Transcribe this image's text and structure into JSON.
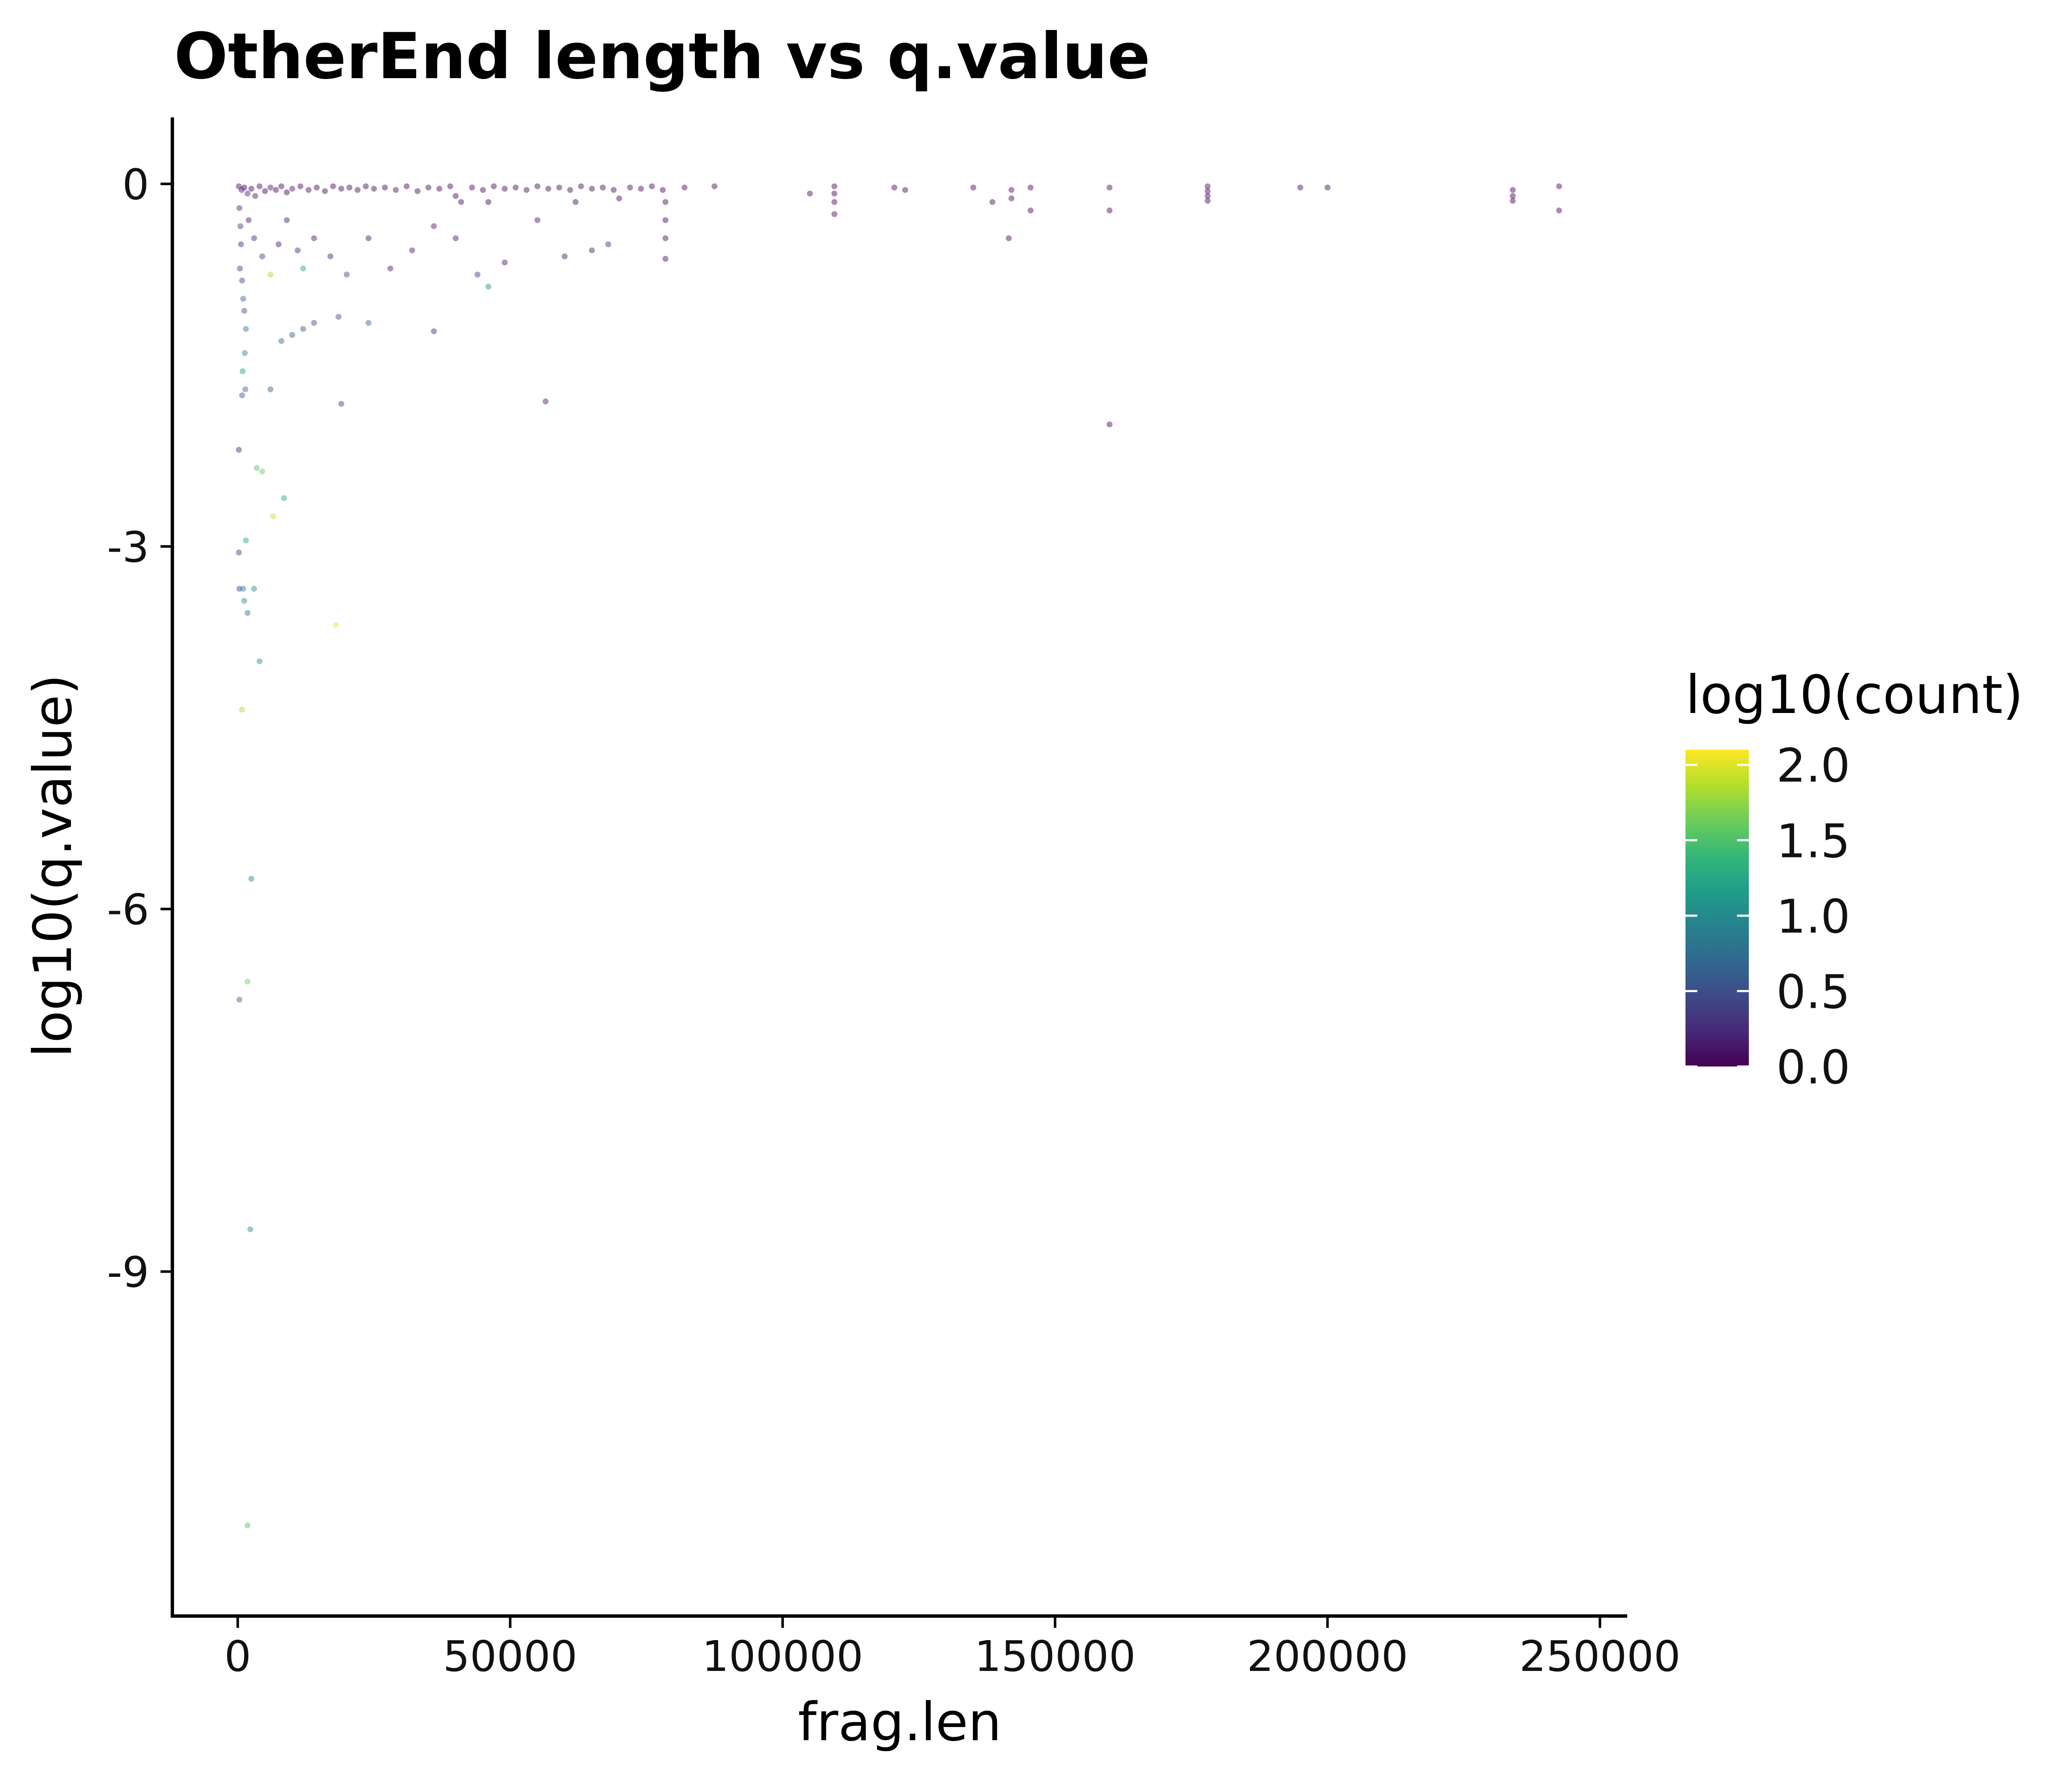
{
  "chart_data": {
    "type": "scatter",
    "title": "OtherEnd length vs q.value",
    "xlabel": "frag.len",
    "ylabel": "log10(q.value)",
    "xlim": [
      -12000,
      255000
    ],
    "ylim": [
      -11.85,
      0.55
    ],
    "xticks": [
      0,
      50000,
      100000,
      150000,
      200000,
      250000
    ],
    "xtick_labels": [
      "0",
      "50000",
      "100000",
      "150000",
      "200000",
      "250000"
    ],
    "yticks": [
      0,
      -3,
      -6,
      -9
    ],
    "ytick_labels": [
      "0",
      "-3",
      "-6",
      "-9"
    ],
    "grid": false,
    "color_scale": {
      "title": "log10(count)",
      "palette": "viridis",
      "range": [
        0,
        2.1
      ],
      "ticks": [
        2.0,
        1.5,
        1.0,
        0.5,
        0.0
      ],
      "tick_labels": [
        "2.0",
        "1.5",
        "1.0",
        "0.5",
        "0.0"
      ],
      "colors": [
        "#440154",
        "#482878",
        "#3E4A89",
        "#31688E",
        "#26828E",
        "#1F9E89",
        "#35B779",
        "#6DCD59",
        "#B4DE2C",
        "#FDE725"
      ]
    },
    "legend_position": "right",
    "points": [
      [
        200,
        -0.02,
        0.0
      ],
      [
        700,
        -0.05,
        0.1
      ],
      [
        1200,
        -0.03,
        0.0
      ],
      [
        1800,
        -0.08,
        0.2
      ],
      [
        2500,
        -0.04,
        0.0
      ],
      [
        3200,
        -0.1,
        0.1
      ],
      [
        4000,
        -0.02,
        0.0
      ],
      [
        5000,
        -0.06,
        0.0
      ],
      [
        6000,
        -0.03,
        0.1
      ],
      [
        7000,
        -0.05,
        0.0
      ],
      [
        8000,
        -0.02,
        0.0
      ],
      [
        9000,
        -0.07,
        0.0
      ],
      [
        10000,
        -0.04,
        0.1
      ],
      [
        11500,
        -0.02,
        0.0
      ],
      [
        13000,
        -0.05,
        0.0
      ],
      [
        14500,
        -0.03,
        0.0
      ],
      [
        16000,
        -0.06,
        0.0
      ],
      [
        17500,
        -0.02,
        0.0
      ],
      [
        19000,
        -0.04,
        0.0
      ],
      [
        20500,
        -0.03,
        0.0
      ],
      [
        22000,
        -0.05,
        0.0
      ],
      [
        23500,
        -0.02,
        0.0
      ],
      [
        25000,
        -0.04,
        0.0
      ],
      [
        27000,
        -0.03,
        0.0
      ],
      [
        29000,
        -0.05,
        0.0
      ],
      [
        31000,
        -0.02,
        0.0
      ],
      [
        33000,
        -0.06,
        0.0
      ],
      [
        35000,
        -0.03,
        0.0
      ],
      [
        37000,
        -0.04,
        0.0
      ],
      [
        39000,
        -0.02,
        0.0
      ],
      [
        40000,
        -0.1,
        0.0
      ],
      [
        41000,
        -0.15,
        0.0
      ],
      [
        43000,
        -0.03,
        0.0
      ],
      [
        45000,
        -0.05,
        0.0
      ],
      [
        46000,
        -0.15,
        0.0
      ],
      [
        47000,
        -0.02,
        0.0
      ],
      [
        49000,
        -0.04,
        0.0
      ],
      [
        51000,
        -0.03,
        0.0
      ],
      [
        53000,
        -0.05,
        0.0
      ],
      [
        55000,
        -0.02,
        0.0
      ],
      [
        57000,
        -0.04,
        0.0
      ],
      [
        59000,
        -0.03,
        0.0
      ],
      [
        61000,
        -0.05,
        0.0
      ],
      [
        62000,
        -0.15,
        0.0
      ],
      [
        63000,
        -0.02,
        0.0
      ],
      [
        65000,
        -0.04,
        0.0
      ],
      [
        67000,
        -0.03,
        0.0
      ],
      [
        69000,
        -0.05,
        0.0
      ],
      [
        70000,
        -0.12,
        0.0
      ],
      [
        72000,
        -0.03,
        0.0
      ],
      [
        74000,
        -0.04,
        0.0
      ],
      [
        76000,
        -0.02,
        0.0
      ],
      [
        78000,
        -0.05,
        0.0
      ],
      [
        78500,
        -0.15,
        0.0
      ],
      [
        78500,
        -0.3,
        0.0
      ],
      [
        78500,
        -0.45,
        0.0
      ],
      [
        78500,
        -0.62,
        0.0
      ],
      [
        82000,
        -0.03,
        0.0
      ],
      [
        87500,
        -0.02,
        0.0
      ],
      [
        105000,
        -0.08,
        0.0
      ],
      [
        109500,
        -0.02,
        0.0
      ],
      [
        109500,
        -0.08,
        0.0
      ],
      [
        109500,
        -0.15,
        0.0
      ],
      [
        109500,
        -0.25,
        0.0
      ],
      [
        120500,
        -0.03,
        0.0
      ],
      [
        122500,
        -0.05,
        0.0
      ],
      [
        135000,
        -0.03,
        0.0
      ],
      [
        138500,
        -0.15,
        0.0
      ],
      [
        142000,
        -0.05,
        0.0
      ],
      [
        142000,
        -0.12,
        0.0
      ],
      [
        141500,
        -0.45,
        0.0
      ],
      [
        145500,
        -0.03,
        0.0
      ],
      [
        145500,
        -0.22,
        0.0
      ],
      [
        160000,
        -0.03,
        0.0
      ],
      [
        160000,
        -0.22,
        0.0
      ],
      [
        160000,
        -1.99,
        0.0
      ],
      [
        178000,
        -0.02,
        0.0
      ],
      [
        178000,
        -0.06,
        0.0
      ],
      [
        178000,
        -0.1,
        0.0
      ],
      [
        178000,
        -0.14,
        0.0
      ],
      [
        195000,
        -0.03,
        0.0
      ],
      [
        200000,
        -0.03,
        0.0
      ],
      [
        234000,
        -0.05,
        0.0
      ],
      [
        234000,
        -0.1,
        0.0
      ],
      [
        234000,
        -0.14,
        0.0
      ],
      [
        242500,
        -0.02,
        0.0
      ],
      [
        242500,
        -0.22,
        0.0
      ],
      [
        300,
        -0.2,
        0.2
      ],
      [
        500,
        -0.35,
        0.3
      ],
      [
        600,
        -0.5,
        0.2
      ],
      [
        400,
        -0.7,
        0.3
      ],
      [
        800,
        -0.8,
        0.4
      ],
      [
        1000,
        -0.95,
        0.6
      ],
      [
        1200,
        -1.05,
        0.5
      ],
      [
        1500,
        -1.2,
        0.8
      ],
      [
        1300,
        -1.4,
        0.9
      ],
      [
        900,
        -1.55,
        1.1
      ],
      [
        1400,
        -1.7,
        0.7
      ],
      [
        800,
        -1.75,
        0.5
      ],
      [
        2000,
        -0.3,
        0.1
      ],
      [
        3000,
        -0.45,
        0.2
      ],
      [
        4500,
        -0.6,
        0.3
      ],
      [
        6000,
        -0.75,
        1.8
      ],
      [
        7500,
        -0.5,
        0.1
      ],
      [
        9000,
        -0.3,
        0.1
      ],
      [
        11000,
        -0.55,
        0.2
      ],
      [
        12000,
        -0.7,
        1.2
      ],
      [
        14000,
        -0.45,
        0.1
      ],
      [
        17000,
        -0.6,
        0.2
      ],
      [
        20000,
        -0.75,
        0.4
      ],
      [
        24000,
        -0.45,
        0.1
      ],
      [
        28000,
        -0.7,
        0.1
      ],
      [
        32000,
        -0.55,
        0.1
      ],
      [
        36000,
        -0.35,
        0.1
      ],
      [
        40000,
        -0.45,
        0.1
      ],
      [
        46000,
        -0.85,
        1.0
      ],
      [
        44000,
        -0.75,
        0.3
      ],
      [
        49000,
        -0.65,
        0.1
      ],
      [
        55000,
        -0.3,
        0.1
      ],
      [
        60000,
        -0.6,
        0.1
      ],
      [
        65000,
        -0.55,
        0.1
      ],
      [
        68000,
        -0.5,
        0.2
      ],
      [
        6000,
        -1.7,
        0.6
      ],
      [
        12000,
        -1.2,
        0.5
      ],
      [
        8000,
        -1.3,
        0.7
      ],
      [
        10000,
        -1.25,
        0.6
      ],
      [
        14000,
        -1.15,
        0.4
      ],
      [
        18500,
        -1.1,
        0.4
      ],
      [
        24000,
        -1.15,
        0.6
      ],
      [
        36000,
        -1.22,
        0.2
      ],
      [
        19000,
        -1.82,
        0.3
      ],
      [
        56500,
        -1.8,
        0.1
      ],
      [
        200,
        -2.2,
        0.2
      ],
      [
        3500,
        -2.35,
        1.5
      ],
      [
        4500,
        -2.38,
        1.6
      ],
      [
        8500,
        -2.6,
        1.2
      ],
      [
        6500,
        -2.75,
        1.9
      ],
      [
        1500,
        -2.95,
        1.2
      ],
      [
        200,
        -3.05,
        0.3
      ],
      [
        300,
        -3.35,
        0.4
      ],
      [
        1000,
        -3.35,
        0.9
      ],
      [
        3000,
        -3.35,
        1.0
      ],
      [
        1200,
        -3.45,
        1.0
      ],
      [
        1800,
        -3.55,
        0.8
      ],
      [
        18000,
        -3.65,
        2.05
      ],
      [
        4000,
        -3.95,
        1.0
      ],
      [
        800,
        -4.35,
        1.8
      ],
      [
        2500,
        -5.75,
        0.9
      ],
      [
        1800,
        -6.6,
        1.6
      ],
      [
        300,
        -6.75,
        0.6
      ],
      [
        2300,
        -8.65,
        1.0
      ],
      [
        1800,
        -11.1,
        1.5
      ]
    ]
  }
}
